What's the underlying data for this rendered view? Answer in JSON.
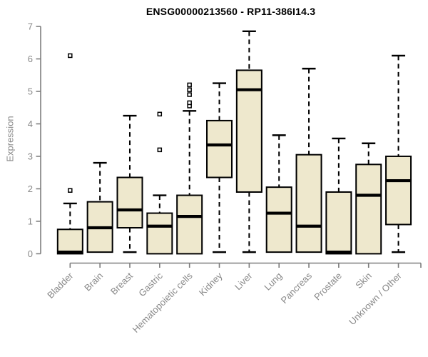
{
  "chart_data": {
    "type": "boxplot",
    "title": "ENSG00000213560 - RP11-386I14.3",
    "ylabel": "Expression",
    "xlabel": "",
    "ylim": [
      0,
      7
    ],
    "yticks": [
      0,
      1,
      2,
      3,
      4,
      5,
      6,
      7
    ],
    "grid": false,
    "legend": "none",
    "categories": [
      "Bladder",
      "Brain",
      "Breast",
      "Gastric",
      "Hematopoietic cells",
      "Kidney",
      "Liver",
      "Lung",
      "Pancreas",
      "Prostate",
      "Skin",
      "Unknown / Other"
    ],
    "boxes": [
      {
        "category": "Bladder",
        "whisker_low": null,
        "q1": 0.0,
        "median": 0.05,
        "q3": 0.75,
        "whisker_high": 1.55,
        "outliers": [
          1.95,
          6.1
        ]
      },
      {
        "category": "Brain",
        "whisker_low": null,
        "q1": 0.05,
        "median": 0.8,
        "q3": 1.6,
        "whisker_high": 2.8,
        "outliers": []
      },
      {
        "category": "Breast",
        "whisker_low": 0.05,
        "q1": 0.8,
        "median": 1.35,
        "q3": 2.35,
        "whisker_high": 4.25,
        "outliers": []
      },
      {
        "category": "Gastric",
        "whisker_low": null,
        "q1": 0.0,
        "median": 0.85,
        "q3": 1.25,
        "whisker_high": 1.8,
        "outliers": [
          3.2,
          4.3
        ]
      },
      {
        "category": "Hematopoietic cells",
        "whisker_low": null,
        "q1": 0.0,
        "median": 1.15,
        "q3": 1.8,
        "whisker_high": 4.4,
        "outliers": [
          4.55,
          4.65,
          4.9,
          5.05,
          5.2
        ]
      },
      {
        "category": "Kidney",
        "whisker_low": 0.05,
        "q1": 2.35,
        "median": 3.35,
        "q3": 4.1,
        "whisker_high": 5.25,
        "outliers": []
      },
      {
        "category": "Liver",
        "whisker_low": 0.05,
        "q1": 1.9,
        "median": 5.05,
        "q3": 5.65,
        "whisker_high": 6.85,
        "outliers": []
      },
      {
        "category": "Lung",
        "whisker_low": null,
        "q1": 0.05,
        "median": 1.25,
        "q3": 2.05,
        "whisker_high": 3.65,
        "outliers": []
      },
      {
        "category": "Pancreas",
        "whisker_low": null,
        "q1": 0.05,
        "median": 0.85,
        "q3": 3.05,
        "whisker_high": 5.7,
        "outliers": []
      },
      {
        "category": "Prostate",
        "whisker_low": null,
        "q1": 0.0,
        "median": 0.05,
        "q3": 1.9,
        "whisker_high": 3.55,
        "outliers": []
      },
      {
        "category": "Skin",
        "whisker_low": null,
        "q1": 0.0,
        "median": 1.8,
        "q3": 2.75,
        "whisker_high": 3.4,
        "outliers": []
      },
      {
        "category": "Unknown / Other",
        "whisker_low": 0.05,
        "q1": 0.9,
        "median": 2.25,
        "q3": 3.0,
        "whisker_high": 6.1,
        "outliers": []
      }
    ],
    "colors": {
      "box_fill": "#EEE8CD",
      "box_stroke": "#000000",
      "median": "#000000",
      "whisker": "#000000",
      "outlier_stroke": "#000000",
      "axis_line": "#7E7E7E",
      "tick_text": "#888888",
      "title_text": "#000000"
    }
  }
}
